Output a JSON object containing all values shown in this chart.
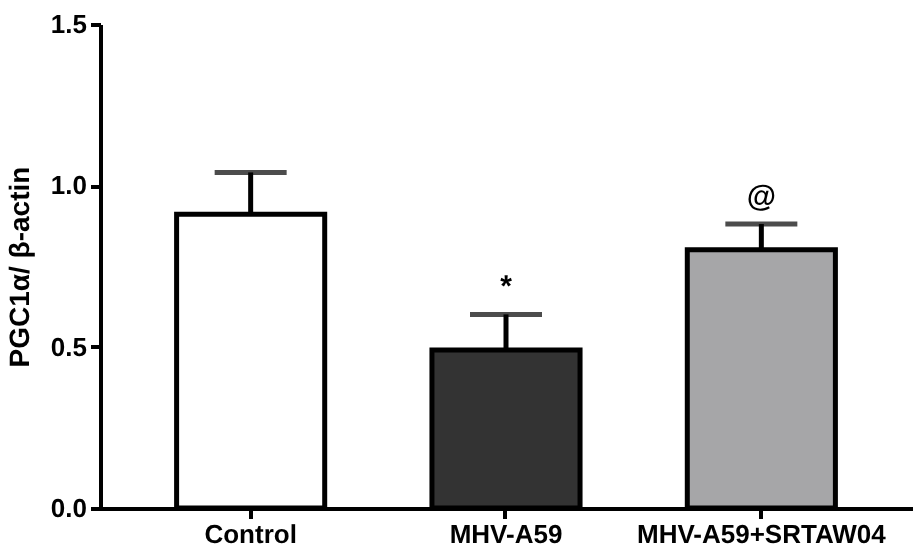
{
  "chart_data": {
    "type": "bar",
    "ylabel": "PGC1α/ β-actin",
    "categories": [
      "Control",
      "MHV-A59",
      "MHV-A59+SRTAW04"
    ],
    "values": [
      0.91,
      0.49,
      0.8
    ],
    "colors": [
      "#ffffff",
      "#333333",
      "#a6a6a8"
    ],
    "errors": [
      [
        0.91,
        1.04
      ],
      [
        0.49,
        0.6
      ],
      [
        0.8,
        0.88
      ]
    ],
    "ylim": [
      0,
      1.5
    ],
    "yticks": [
      {
        "value": 0,
        "label": "0.0"
      },
      0.5,
      {
        "value": 1,
        "label": "1.0"
      },
      1.5
    ],
    "annotations": [
      "*",
      "@"
    ],
    "grid": false,
    "legend": false
  }
}
